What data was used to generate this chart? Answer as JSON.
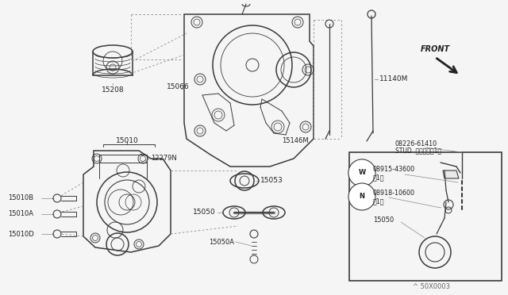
{
  "bg_color": "#f5f5f5",
  "line_color": "#3a3a3a",
  "gray_color": "#888888",
  "fig_width": 6.4,
  "fig_height": 3.72,
  "dpi": 100,
  "border_color": "#cccccc",
  "text_color": "#222222",
  "watermark": "^ 50X0003",
  "parts": {
    "oil_filter_label": "15208",
    "timing_cover_label": "15066",
    "pump_assy_label": "15010",
    "gasket_label": "12279N",
    "bolt_b_label": "15010B",
    "bolt_a_label": "15010A",
    "bolt_d_label": "15010D",
    "strainer_label": "15053",
    "strainer2_label": "15050",
    "strainer_bolt_label": "15050A",
    "guide_label": "15146M",
    "dipstick_label": "11140M",
    "stud_part": "08226-61410",
    "stud_text": "STUD  スタッド（1）",
    "washer_part": "08915-43600",
    "washer_sub": "（1）",
    "nut_part": "08918-10600",
    "nut_sub": "（1）",
    "inset_strainer": "15050",
    "front_text": "FRONT"
  }
}
